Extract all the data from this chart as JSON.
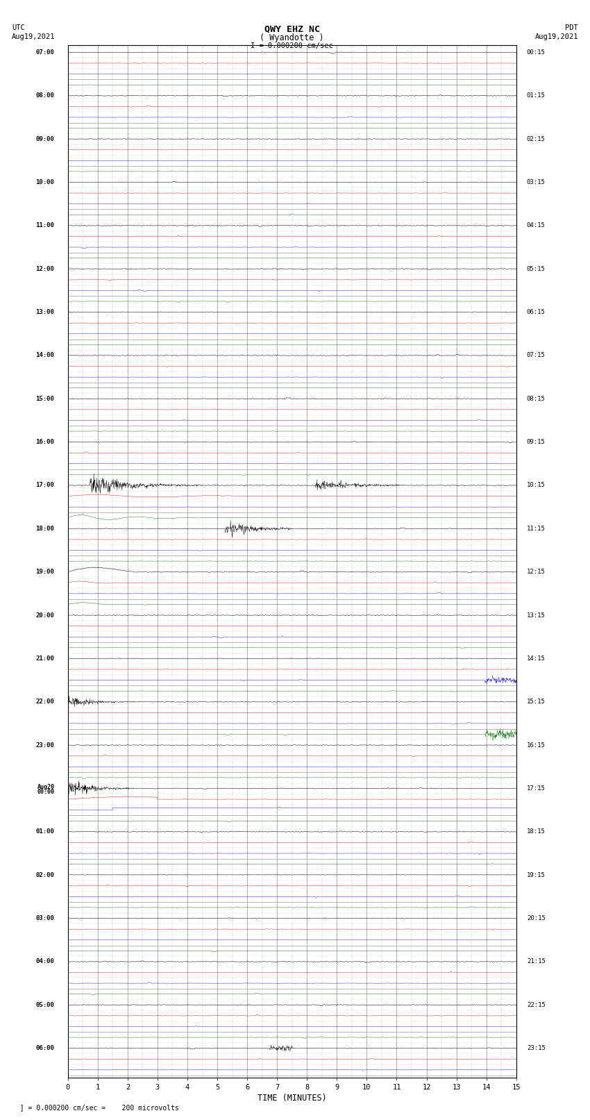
{
  "title_line1": "QWY EHZ NC",
  "title_line2": "( Wyandotte )",
  "scale_label": "I = 0.000200 cm/sec",
  "left_label_top": "UTC",
  "left_label_date": "Aug19,2021",
  "right_label_top": "PDT",
  "right_label_date": "Aug19,2021",
  "bottom_label": "TIME (MINUTES)",
  "footnote": "= 0.000200 cm/sec =    200 microvolts",
  "xlim": [
    0,
    15
  ],
  "xticks": [
    0,
    1,
    2,
    3,
    4,
    5,
    6,
    7,
    8,
    9,
    10,
    11,
    12,
    13,
    14,
    15
  ],
  "bg_color": "#ffffff",
  "grid_color": "#999999",
  "minor_grid_color": "#cccccc",
  "trace_colors": [
    "#000000",
    "#cc0000",
    "#0000cc",
    "#006600"
  ],
  "utc_labels": [
    "07:00",
    "",
    "",
    "",
    "08:00",
    "",
    "",
    "",
    "09:00",
    "",
    "",
    "",
    "10:00",
    "",
    "",
    "",
    "11:00",
    "",
    "",
    "",
    "12:00",
    "",
    "",
    "",
    "13:00",
    "",
    "",
    "",
    "14:00",
    "",
    "",
    "",
    "15:00",
    "",
    "",
    "",
    "16:00",
    "",
    "",
    "",
    "17:00",
    "",
    "",
    "",
    "18:00",
    "",
    "",
    "",
    "19:00",
    "",
    "",
    "",
    "20:00",
    "",
    "",
    "",
    "21:00",
    "",
    "",
    "",
    "22:00",
    "",
    "",
    "",
    "23:00",
    "",
    "",
    "",
    "Aug20\n00:00",
    "",
    "",
    "",
    "01:00",
    "",
    "",
    "",
    "02:00",
    "",
    "",
    "",
    "03:00",
    "",
    "",
    "",
    "04:00",
    "",
    "",
    "",
    "05:00",
    "",
    "",
    "",
    "06:00",
    "",
    ""
  ],
  "pdt_labels": [
    "00:15",
    "",
    "",
    "",
    "01:15",
    "",
    "",
    "",
    "02:15",
    "",
    "",
    "",
    "03:15",
    "",
    "",
    "",
    "04:15",
    "",
    "",
    "",
    "05:15",
    "",
    "",
    "",
    "06:15",
    "",
    "",
    "",
    "07:15",
    "",
    "",
    "",
    "08:15",
    "",
    "",
    "",
    "09:15",
    "",
    "",
    "",
    "10:15",
    "",
    "",
    "",
    "11:15",
    "",
    "",
    "",
    "12:15",
    "",
    "",
    "",
    "13:15",
    "",
    "",
    "",
    "14:15",
    "",
    "",
    "",
    "15:15",
    "",
    "",
    "",
    "16:15",
    "",
    "",
    "",
    "17:15",
    "",
    "",
    "",
    "18:15",
    "",
    "",
    "",
    "19:15",
    "",
    "",
    "",
    "20:15",
    "",
    "",
    "",
    "21:15",
    "",
    "",
    "",
    "22:15",
    "",
    "",
    "",
    "23:15",
    "",
    ""
  ],
  "num_rows": 95,
  "noise_std": 0.06,
  "amplitude_scale": 0.42
}
